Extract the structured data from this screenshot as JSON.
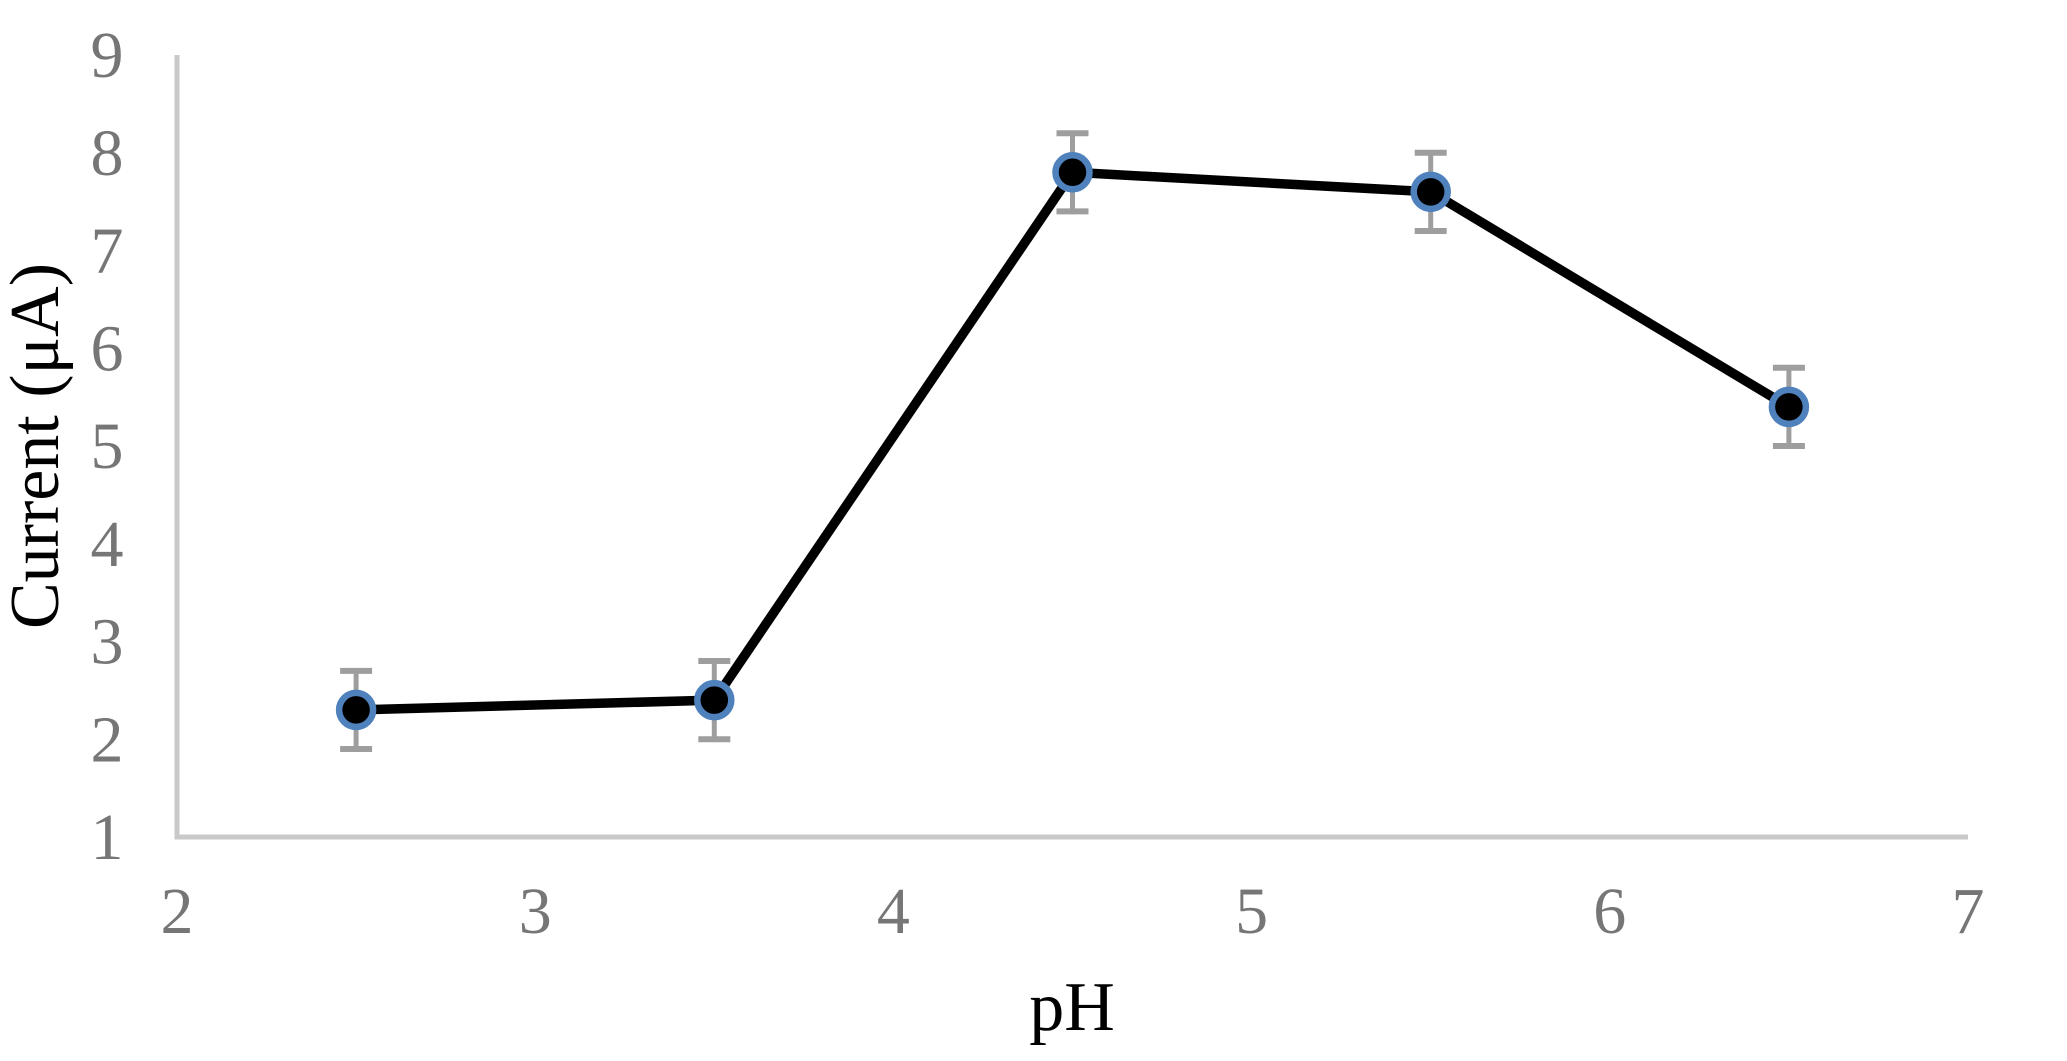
{
  "chart_data": {
    "type": "line",
    "title": "",
    "xlabel": "pH",
    "ylabel": "Current (μA)",
    "x": [
      2.5,
      3.5,
      4.5,
      5.5,
      6.5
    ],
    "y": [
      2.3,
      2.4,
      7.8,
      7.6,
      5.4
    ],
    "y_error": [
      0.4,
      0.4,
      0.4,
      0.4,
      0.4
    ],
    "xlim": [
      2,
      7
    ],
    "ylim": [
      1,
      9
    ],
    "x_ticks": [
      "2",
      "3",
      "4",
      "5",
      "6",
      "7"
    ],
    "y_ticks": [
      "1",
      "2",
      "3",
      "4",
      "5",
      "6",
      "7",
      "8",
      "9"
    ],
    "grid": false,
    "legend": "none",
    "colors": {
      "line": "#000000",
      "marker_fill": "#000000",
      "marker_ring": "#4F81BD",
      "error_bar": "#9E9E9E",
      "axis_line": "#C9C9C9",
      "tick_label": "#767676",
      "axis_title": "#000000",
      "background": "#FFFFFF"
    }
  }
}
